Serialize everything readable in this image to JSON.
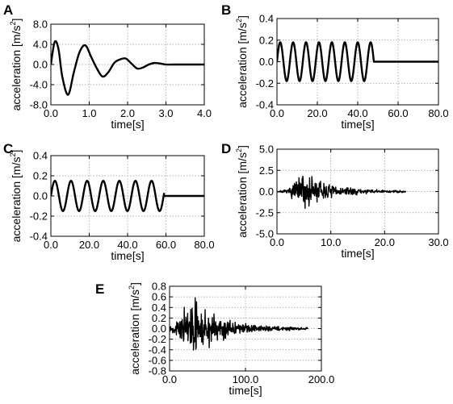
{
  "chart_data": [
    {
      "panel": "A",
      "type": "line",
      "xlabel": "time[s]",
      "ylabel": "acceleration [m/s",
      "ylabel_sup": "2",
      "ylabel_end": "]",
      "xlim": [
        0,
        4
      ],
      "ylim": [
        -8,
        8
      ],
      "xticks": [
        0,
        1,
        2,
        3,
        4
      ],
      "xtick_labels": [
        "0.0",
        "1.0",
        "2.0",
        "3.0",
        "4.0"
      ],
      "yticks": [
        -8,
        -4,
        0,
        4,
        8
      ],
      "ytick_labels": [
        "-8.0",
        "-4.0",
        "0.0",
        "4.0",
        "8.0"
      ],
      "grid": true,
      "series": [
        {
          "style": "smooth",
          "x": [
            0.0,
            0.1,
            0.2,
            0.3,
            0.45,
            0.6,
            0.75,
            0.9,
            1.05,
            1.2,
            1.35,
            1.5,
            1.65,
            1.8,
            1.95,
            2.1,
            2.25,
            2.4,
            2.55,
            2.7,
            2.85,
            3.0,
            3.2,
            3.5,
            4.0
          ],
          "y": [
            0,
            4.5,
            3.0,
            -2.5,
            -6.0,
            -1.5,
            2.5,
            3.8,
            1.5,
            -0.8,
            -2.4,
            -1.5,
            0.3,
            1.0,
            1.2,
            0.2,
            -0.8,
            -0.6,
            0,
            0.3,
            0.2,
            0,
            0,
            0,
            0
          ]
        }
      ]
    },
    {
      "panel": "B",
      "type": "line",
      "xlabel": "time[s]",
      "ylabel": "acceleration [m/s",
      "ylabel_sup": "2",
      "ylabel_end": "]",
      "xlim": [
        0,
        80
      ],
      "ylim": [
        -0.4,
        0.4
      ],
      "xticks": [
        0,
        20,
        40,
        60,
        80
      ],
      "xtick_labels": [
        "0.0",
        "20.0",
        "40.0",
        "60.0",
        "80.0"
      ],
      "yticks": [
        -0.4,
        -0.2,
        0,
        0.2,
        0.4
      ],
      "ytick_labels": [
        "-0.4",
        "-0.2",
        "0.0",
        "0.2",
        "0.4"
      ],
      "grid": true,
      "series": [
        {
          "style": "sine",
          "amplitude": 0.18,
          "period": 6.4,
          "duration": 48,
          "end": 80
        }
      ]
    },
    {
      "panel": "C",
      "type": "line",
      "xlabel": "time[s]",
      "ylabel": "acceleration [m/s",
      "ylabel_sup": "2",
      "ylabel_end": "]",
      "xlim": [
        0,
        80
      ],
      "ylim": [
        -0.4,
        0.4
      ],
      "xticks": [
        0,
        20,
        40,
        60,
        80
      ],
      "xtick_labels": [
        "0.0",
        "20.0",
        "40.0",
        "60.0",
        "80.0"
      ],
      "yticks": [
        -0.4,
        -0.2,
        0,
        0.2,
        0.4
      ],
      "ytick_labels": [
        "-0.4",
        "-0.2",
        "0.0",
        "0.2",
        "0.4"
      ],
      "grid": true,
      "series": [
        {
          "style": "sine",
          "amplitude": 0.15,
          "period": 8.4,
          "duration": 59,
          "end": 80
        }
      ]
    },
    {
      "panel": "D",
      "type": "line",
      "xlabel": "time[s]",
      "ylabel": "acceleration [m/s",
      "ylabel_sup": "2",
      "ylabel_end": "]",
      "xlim": [
        0,
        30
      ],
      "ylim": [
        -5,
        5
      ],
      "xticks": [
        0,
        10,
        20,
        30
      ],
      "xtick_labels": [
        "0.0",
        "10.0",
        "20.0",
        "30.0"
      ],
      "yticks": [
        -5,
        -2.5,
        0,
        2.5,
        5
      ],
      "ytick_labels": [
        "-5.0",
        "-2.5",
        "0.0",
        "2.5",
        "5.0"
      ],
      "grid": true,
      "series": [
        {
          "style": "noise",
          "start": 0,
          "end": 24,
          "step": 0.06,
          "seed": 7,
          "envelope": [
            [
              0,
              0.1
            ],
            [
              2,
              0.3
            ],
            [
              3.5,
              1.8
            ],
            [
              5,
              3.2
            ],
            [
              7,
              2.6
            ],
            [
              9,
              1.3
            ],
            [
              12,
              0.7
            ],
            [
              16,
              0.4
            ],
            [
              20,
              0.25
            ],
            [
              24,
              0.15
            ]
          ]
        }
      ]
    },
    {
      "panel": "E",
      "type": "line",
      "xlabel": "time[s]",
      "ylabel": "acceleration [m/s",
      "ylabel_sup": "2",
      "ylabel_end": "]",
      "xlim": [
        0,
        200
      ],
      "ylim": [
        -0.8,
        0.8
      ],
      "xticks": [
        0,
        100,
        200
      ],
      "xtick_labels": [
        "0.0",
        "100.0",
        "200.0"
      ],
      "yticks": [
        -0.8,
        -0.6,
        -0.4,
        -0.2,
        0,
        0.2,
        0.4,
        0.6,
        0.8
      ],
      "ytick_labels": [
        "-0.8",
        "-0.6",
        "-0.4",
        "-0.2",
        "0.0",
        "0.2",
        "0.4",
        "0.6",
        "0.8"
      ],
      "grid": true,
      "series": [
        {
          "style": "noise",
          "start": 0,
          "end": 182,
          "step": 0.45,
          "seed": 13,
          "envelope": [
            [
              0,
              0.05
            ],
            [
              10,
              0.2
            ],
            [
              22,
              0.5
            ],
            [
              32,
              0.7
            ],
            [
              45,
              0.5
            ],
            [
              60,
              0.35
            ],
            [
              80,
              0.2
            ],
            [
              110,
              0.1
            ],
            [
              140,
              0.06
            ],
            [
              182,
              0.03
            ]
          ]
        }
      ]
    }
  ]
}
